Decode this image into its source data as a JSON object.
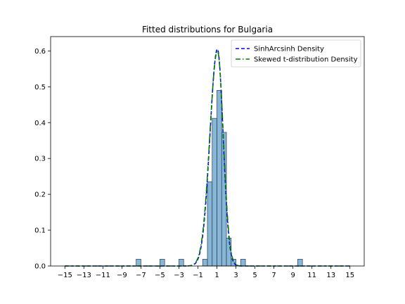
{
  "chart_data": {
    "type": "histogram",
    "title": "Fitted distributions for Bulgaria",
    "xlim": [
      -16.5,
      16.5
    ],
    "ylim": [
      0,
      0.64
    ],
    "xticks": [
      -15,
      -13,
      -11,
      -9,
      -7,
      -5,
      -3,
      -1,
      1,
      3,
      5,
      7,
      9,
      11,
      13,
      15
    ],
    "yticks": [
      0.0,
      0.1,
      0.2,
      0.3,
      0.4,
      0.5,
      0.6
    ],
    "bin_width": 0.5,
    "histogram": {
      "color": "#7aaed3",
      "bins": [
        {
          "left": -7.5,
          "height": 0.019
        },
        {
          "left": -5.0,
          "height": 0.019
        },
        {
          "left": -3.0,
          "height": 0.019
        },
        {
          "left": -0.5,
          "height": 0.019
        },
        {
          "left": 0.0,
          "height": 0.235
        },
        {
          "left": 0.5,
          "height": 0.412
        },
        {
          "left": 1.0,
          "height": 0.49
        },
        {
          "left": 1.5,
          "height": 0.373
        },
        {
          "left": 2.0,
          "height": 0.078
        },
        {
          "left": 2.5,
          "height": 0.019
        },
        {
          "left": 3.5,
          "height": 0.019
        },
        {
          "left": 9.5,
          "height": 0.019
        }
      ]
    },
    "series": [
      {
        "name": "SinhArcsinh Density",
        "color": "#0000ff",
        "style": "dashed",
        "mode": 1.05,
        "peak": 0.605,
        "left_scale": 0.78,
        "right_scale": 0.6
      },
      {
        "name": "Skewed t-distribution Density",
        "color": "#008000",
        "style": "dashdot",
        "mode": 1.05,
        "peak": 0.6,
        "left_scale": 0.8,
        "right_scale": 0.62
      }
    ],
    "curve_x_range": [
      -15,
      15
    ],
    "legend_position": "upper right",
    "grid": false
  }
}
